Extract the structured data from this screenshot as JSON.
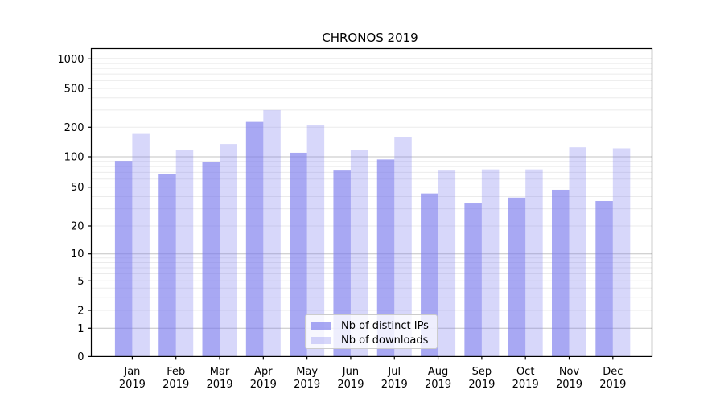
{
  "chart_data": {
    "type": "bar",
    "title": "CHRONOS 2019",
    "categories": [
      "Jan 2019",
      "Feb 2019",
      "Mar 2019",
      "Apr 2019",
      "May 2019",
      "Jun 2019",
      "Jul 2019",
      "Aug 2019",
      "Sep 2019",
      "Oct 2019",
      "Nov 2019",
      "Dec 2019"
    ],
    "series": [
      {
        "name": "Nb of distinct IPs",
        "color": "rgba(122,122,237,0.65)",
        "values": [
          91,
          67,
          88,
          227,
          110,
          73,
          94,
          43,
          34,
          39,
          47,
          36
        ]
      },
      {
        "name": "Nb of downloads",
        "color": "rgba(122,122,237,0.30)",
        "values": [
          171,
          117,
          135,
          300,
          209,
          118,
          160,
          73,
          75,
          75,
          125,
          122
        ]
      }
    ],
    "yscale": "symlog",
    "ylim": [
      0,
      1000
    ],
    "y_ticks": [
      0,
      1,
      2,
      5,
      10,
      20,
      50,
      100,
      200,
      500,
      1000
    ],
    "grid": true,
    "legend_position": "lower-center",
    "colors": {
      "major_grid": "#c3c3c3",
      "minor_grid": "#ebebeb",
      "axis": "#000000",
      "text": "#000000",
      "background": "#ffffff"
    }
  }
}
